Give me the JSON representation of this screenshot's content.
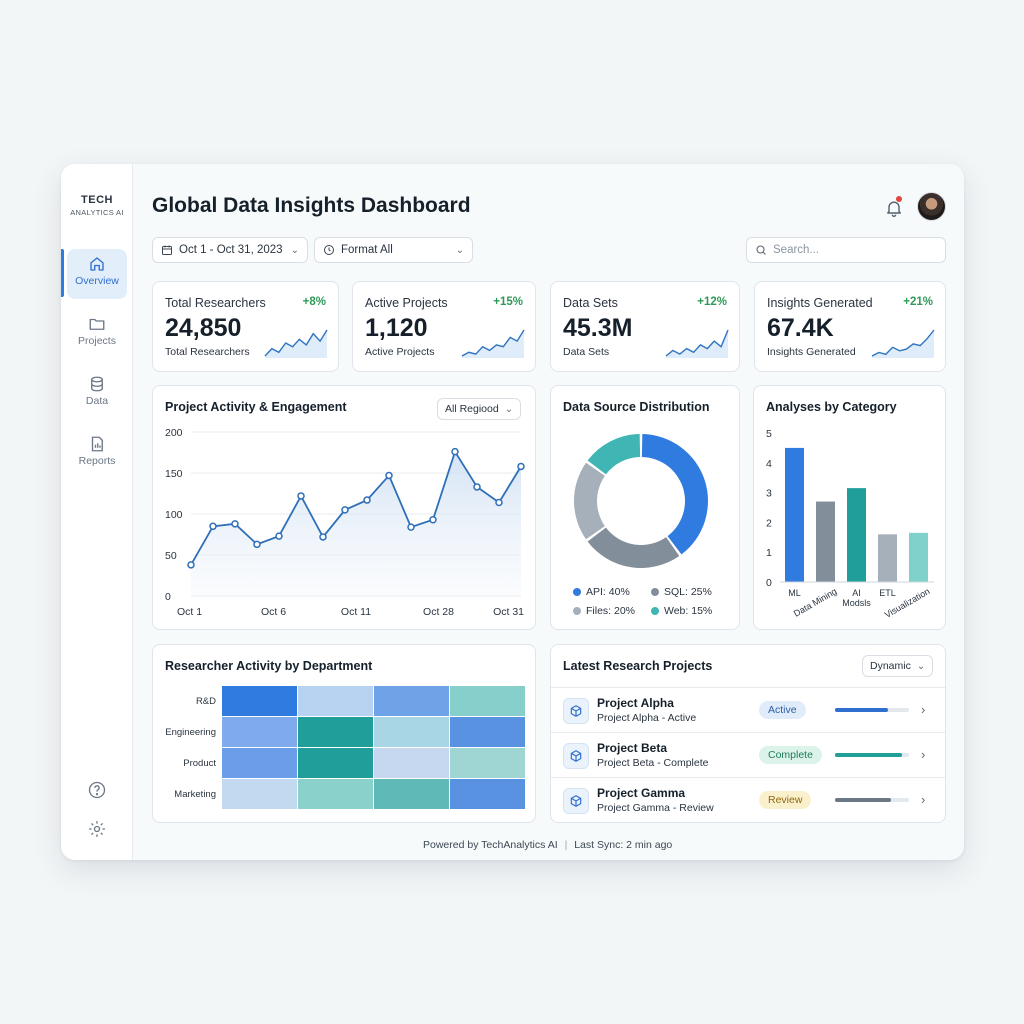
{
  "brand": {
    "line1": "TECH",
    "line2": "ANALYTICS AI"
  },
  "sidebar": {
    "items": [
      {
        "label": "Overview",
        "icon": "home-icon",
        "active": true
      },
      {
        "label": "Projects",
        "icon": "folder-icon",
        "active": false
      },
      {
        "label": "Data",
        "icon": "database-icon",
        "active": false
      },
      {
        "label": "Reports",
        "icon": "report-icon",
        "active": false
      }
    ],
    "bottom_icons": [
      "help-icon",
      "gear-icon"
    ]
  },
  "header": {
    "title": "Global Data Insights Dashboard",
    "notification_icon": "bell-icon"
  },
  "filters": {
    "date_range": "Oct 1 - Oct 31, 2023",
    "format": "Format All",
    "search_placeholder": "Search..."
  },
  "kpis": [
    {
      "label": "Total Researchers",
      "delta": "+8%",
      "value": "24,850",
      "sub": "Total Researchers",
      "spark": [
        10,
        14,
        12,
        17,
        15,
        19,
        16,
        22,
        18,
        24
      ]
    },
    {
      "label": "Active Projects",
      "delta": "+15%",
      "value": "1,120",
      "sub": "Active Projects",
      "spark": [
        8,
        10,
        9,
        13,
        11,
        14,
        13,
        18,
        16,
        22
      ]
    },
    {
      "label": "Data Sets",
      "delta": "+12%",
      "value": "45.3M",
      "sub": "Data Sets",
      "spark": [
        6,
        9,
        7,
        10,
        8,
        12,
        10,
        14,
        11,
        20
      ]
    },
    {
      "label": "Insights Generated",
      "delta": "+21%",
      "value": "67.4K",
      "sub": "Insights Generated",
      "spark": [
        7,
        9,
        8,
        12,
        10,
        11,
        14,
        13,
        17,
        22
      ]
    }
  ],
  "activity": {
    "title": "Project Activity & Engagement",
    "dropdown": "All Regiood"
  },
  "donut": {
    "title": "Data Source Distribution",
    "legend": [
      "API: 40%",
      "SQL: 25%",
      "Files: 20%",
      "Web: 15%"
    ]
  },
  "categories_card": {
    "title": "Analyses by Category"
  },
  "heatmap": {
    "title": "Researcher Activity by Department",
    "rows": [
      "R&D",
      "Engineering",
      "Product",
      "Marketing"
    ],
    "colors": [
      [
        "#2f7be0",
        "#b8d3f2",
        "#6fa3e8",
        "#87cfca"
      ],
      [
        "#7fabec",
        "#1f9e9a",
        "#a9d6e4",
        "#5a92e2"
      ],
      [
        "#6a9ee8",
        "#1f9e9a",
        "#c6d8f0",
        "#9fd5d3"
      ],
      [
        "#c3d9ef",
        "#8ad0cb",
        "#5fb9b7",
        "#5a92e2"
      ]
    ]
  },
  "projects": {
    "title": "Latest Research Projects",
    "dropdown": "Dynamic",
    "items": [
      {
        "name": "Project Alpha",
        "sub": "Project Alpha - Active",
        "badge": "Active",
        "progress": 0.72,
        "color": "#2f6fd0",
        "badge_bg": "#e1ecfa",
        "badge_fg": "#2a5fa8"
      },
      {
        "name": "Project Beta",
        "sub": "Project Beta - Complete",
        "badge": "Complete",
        "progress": 0.9,
        "color": "#1f9e9a",
        "badge_bg": "#dcf3ea",
        "badge_fg": "#1d7d5c"
      },
      {
        "name": "Project Gamma",
        "sub": "Project Gamma - Review",
        "badge": "Review",
        "progress": 0.75,
        "color": "#6b7785",
        "badge_bg": "#fbf0cc",
        "badge_fg": "#8a6a12"
      }
    ]
  },
  "footer": {
    "powered": "Powered by TechAnalytics AI",
    "sync": "Last Sync: 2 min ago"
  },
  "chart_data": [
    {
      "type": "line",
      "title": "Project Activity & Engagement",
      "x_ticks": [
        "Oct 1",
        "Oct 6",
        "Oct 11",
        "Oct 28",
        "Oct 31"
      ],
      "ylim": [
        0,
        200
      ],
      "y_ticks": [
        0,
        50,
        100,
        150,
        200
      ],
      "values": [
        38,
        85,
        88,
        63,
        73,
        122,
        72,
        105,
        117,
        147,
        84,
        93,
        176,
        133,
        114,
        158
      ],
      "grid": true,
      "color": "#2f6fb8"
    },
    {
      "type": "pie",
      "title": "Data Source Distribution",
      "labels": [
        "API",
        "SQL",
        "Files",
        "Web"
      ],
      "values": [
        40,
        25,
        20,
        15
      ],
      "colors": [
        "#2f7be0",
        "#838e9b",
        "#a6b0ba",
        "#3fb6b4"
      ]
    },
    {
      "type": "bar",
      "title": "Analyses by Category",
      "categories": [
        "ML",
        "Data Mining",
        "AI Models",
        "ETL",
        "Visualization"
      ],
      "category_labels": [
        "ML",
        "Data Mining",
        "AI\nModsls",
        "ETL",
        "Visualization"
      ],
      "values": [
        4.5,
        2.7,
        3.15,
        1.6,
        1.65
      ],
      "ylim": [
        0,
        5
      ],
      "y_ticks": [
        0,
        1,
        2,
        3,
        4,
        5
      ],
      "colors": [
        "#2f7be0",
        "#838e9b",
        "#1f9e9a",
        "#a6b0ba",
        "#7fd1cb"
      ]
    }
  ]
}
